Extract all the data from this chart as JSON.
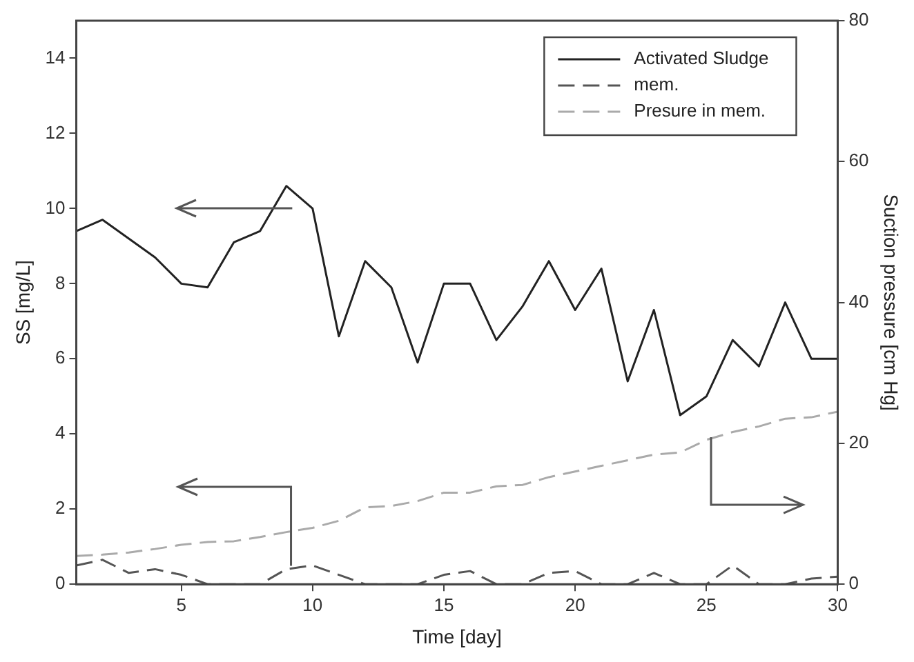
{
  "chart_data": {
    "type": "line",
    "xlabel": "Time [day]",
    "ylabel": "SS [mg/L]",
    "y2label": "Suction pressure [cm Hg]",
    "x": [
      1,
      2,
      3,
      4,
      5,
      6,
      7,
      8,
      9,
      10,
      11,
      12,
      13,
      14,
      15,
      16,
      17,
      18,
      19,
      20,
      21,
      22,
      23,
      24,
      25,
      26,
      27,
      28,
      29,
      30
    ],
    "series": [
      {
        "name": "Activated Sludge",
        "color": "#222222",
        "line_style": "solid",
        "values": [
          9.4,
          9.7,
          9.2,
          8.7,
          8.0,
          7.9,
          9.1,
          9.4,
          10.6,
          10.0,
          6.6,
          8.6,
          7.9,
          5.9,
          8.0,
          8.0,
          6.5,
          7.4,
          8.6,
          7.3,
          8.4,
          5.4,
          7.3,
          4.5,
          5.0,
          6.5,
          5.8,
          7.5,
          6.0,
          6.0
        ]
      },
      {
        "name": "mem.",
        "color": "#555555",
        "line_style": "dashed",
        "values": [
          0.5,
          0.65,
          0.3,
          0.4,
          0.25,
          0,
          0,
          0,
          0.4,
          0.5,
          0.25,
          0,
          0,
          0,
          0.25,
          0.35,
          0,
          0,
          0.3,
          0.35,
          0,
          0,
          0.3,
          0,
          0,
          0.5,
          0,
          0,
          0.15,
          0.2
        ]
      },
      {
        "name": "Presure in mem.",
        "color": "#aaaaaa",
        "line_style": "dashed",
        "axis": "y2",
        "values": [
          4,
          4.2,
          4.5,
          5,
          5.6,
          6,
          6.1,
          6.7,
          7.4,
          8,
          9,
          10.9,
          11.1,
          11.8,
          13,
          13,
          13.9,
          14.1,
          15.2,
          16,
          16.8,
          17.6,
          18.4,
          18.7,
          20.5,
          21.6,
          22.4,
          23.5,
          23.7,
          24.5
        ]
      }
    ],
    "xlim": [
      1,
      30
    ],
    "xticks": [
      5,
      10,
      15,
      20,
      25,
      30
    ],
    "ylim": [
      0,
      15
    ],
    "yticks": [
      0,
      2,
      4,
      6,
      8,
      10,
      12,
      14
    ],
    "y2lim": [
      0,
      80
    ],
    "y2ticks": [
      0,
      20,
      40,
      60,
      80
    ],
    "grid": false,
    "legend": "top right",
    "marker": "none"
  }
}
